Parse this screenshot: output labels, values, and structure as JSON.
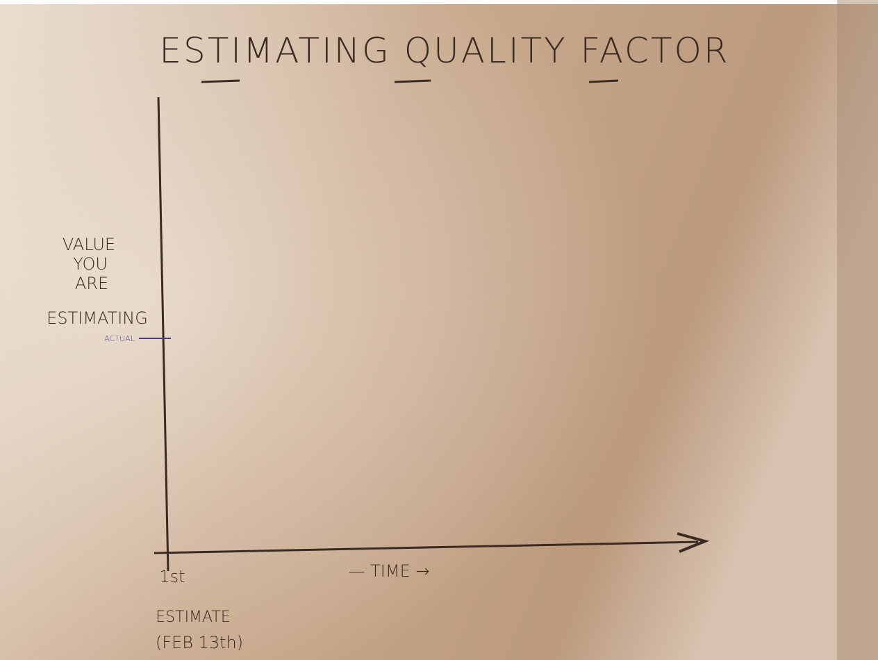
{
  "title": "ESTIMATING QUALITY FACTOR",
  "y_axis": {
    "label_lines": [
      "VALUE",
      "YOU",
      "ARE",
      "ESTIMATING"
    ],
    "marker": "ACTUAL"
  },
  "x_axis": {
    "label": "— TIME →",
    "origin_lines": [
      "1st",
      "ESTIMATE",
      "(FEB 13th)"
    ]
  }
}
